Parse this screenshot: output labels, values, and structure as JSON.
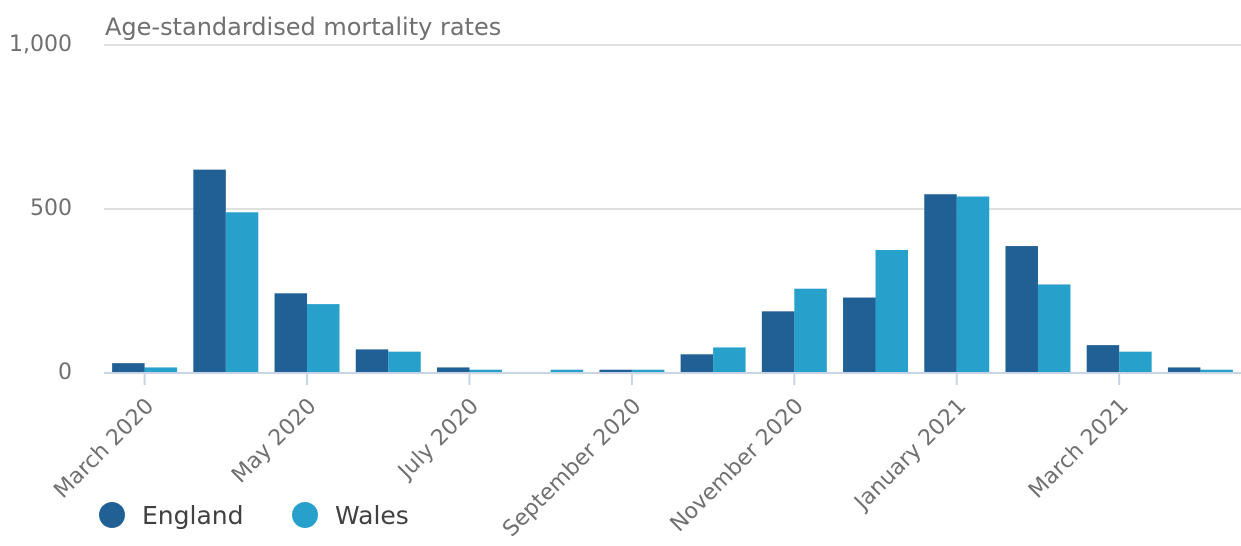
{
  "chart_data": {
    "type": "bar",
    "title": "Age-standardised mortality rates",
    "categories": [
      "March 2020",
      null,
      "May 2020",
      null,
      "July 2020",
      null,
      "September 2020",
      null,
      "November 2020",
      null,
      "January 2021",
      null,
      "March 2021",
      null
    ],
    "series": [
      {
        "name": "England",
        "color": "#206095",
        "values": [
          30,
          620,
          243,
          72,
          17,
          3,
          10,
          57,
          188,
          230,
          545,
          387,
          85,
          17
        ]
      },
      {
        "name": "Wales",
        "color": "#27a0cc",
        "values": [
          17,
          490,
          210,
          65,
          10,
          10,
          10,
          78,
          257,
          375,
          538,
          270,
          65,
          10
        ]
      }
    ],
    "ylim": [
      0,
      1000
    ],
    "yticks": [
      0,
      500,
      {
        "value": 1000,
        "label": "1,000"
      }
    ],
    "grid": true,
    "legend": "bottom-left"
  }
}
